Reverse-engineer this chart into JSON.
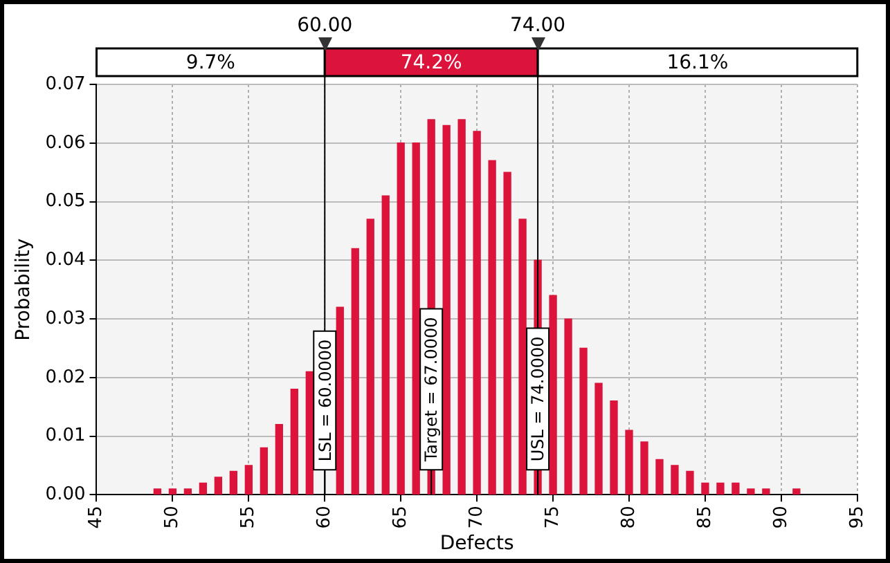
{
  "chart_data": {
    "type": "bar",
    "xlabel": "Defects",
    "ylabel": "Probability",
    "x": [
      49,
      50,
      51,
      52,
      53,
      54,
      55,
      56,
      57,
      58,
      59,
      60,
      61,
      62,
      63,
      64,
      65,
      66,
      67,
      68,
      69,
      70,
      71,
      72,
      73,
      74,
      75,
      76,
      77,
      78,
      79,
      80,
      81,
      82,
      83,
      84,
      85,
      86,
      87,
      88,
      89,
      91
    ],
    "series": [
      {
        "color": "#dc143c",
        "values": [
          0.001,
          0.001,
          0.001,
          0.002,
          0.003,
          0.004,
          0.005,
          0.008,
          0.012,
          0.018,
          0.021,
          null,
          0.032,
          0.042,
          0.047,
          0.051,
          0.06,
          0.06,
          0.064,
          0.063,
          0.064,
          0.062,
          0.057,
          0.055,
          0.047,
          0.04,
          0.034,
          0.03,
          0.025,
          0.019,
          0.016,
          0.011,
          0.009,
          0.006,
          0.005,
          0.004,
          0.002,
          0.002,
          0.002,
          0.001,
          0.001,
          0.001
        ]
      }
    ],
    "xlim": [
      45,
      95
    ],
    "xticks": [
      45,
      50,
      55,
      60,
      65,
      70,
      75,
      80,
      85,
      90,
      95
    ],
    "ylim": [
      0,
      0.07
    ],
    "yticks": [
      {
        "value": 0,
        "label": "0.00"
      },
      {
        "value": 0.01,
        "label": "0.01"
      },
      {
        "value": 0.02,
        "label": "0.02"
      },
      {
        "value": 0.03,
        "label": "0.03"
      },
      {
        "value": 0.04,
        "label": "0.04"
      },
      {
        "value": 0.05,
        "label": "0.05"
      },
      {
        "value": 0.06,
        "label": "0.06"
      },
      {
        "value": 0.07,
        "label": "0.07"
      }
    ],
    "ref_lines": [
      {
        "axis": "x",
        "value": 60,
        "label": "60.00",
        "color": "#000000"
      },
      {
        "axis": "x",
        "value": 74,
        "label": "74.00",
        "color": "#000000"
      },
      {
        "axis": "x",
        "value": 60,
        "label": "LSL = 60.0000"
      },
      {
        "axis": "x",
        "value": 67,
        "label": "Target = 67.0000"
      },
      {
        "axis": "x",
        "value": 74,
        "label": "USL = 74.0000"
      }
    ],
    "annotations": [
      "9.7%",
      "74.2%",
      "16.1%"
    ],
    "grid": true,
    "legend": false
  }
}
